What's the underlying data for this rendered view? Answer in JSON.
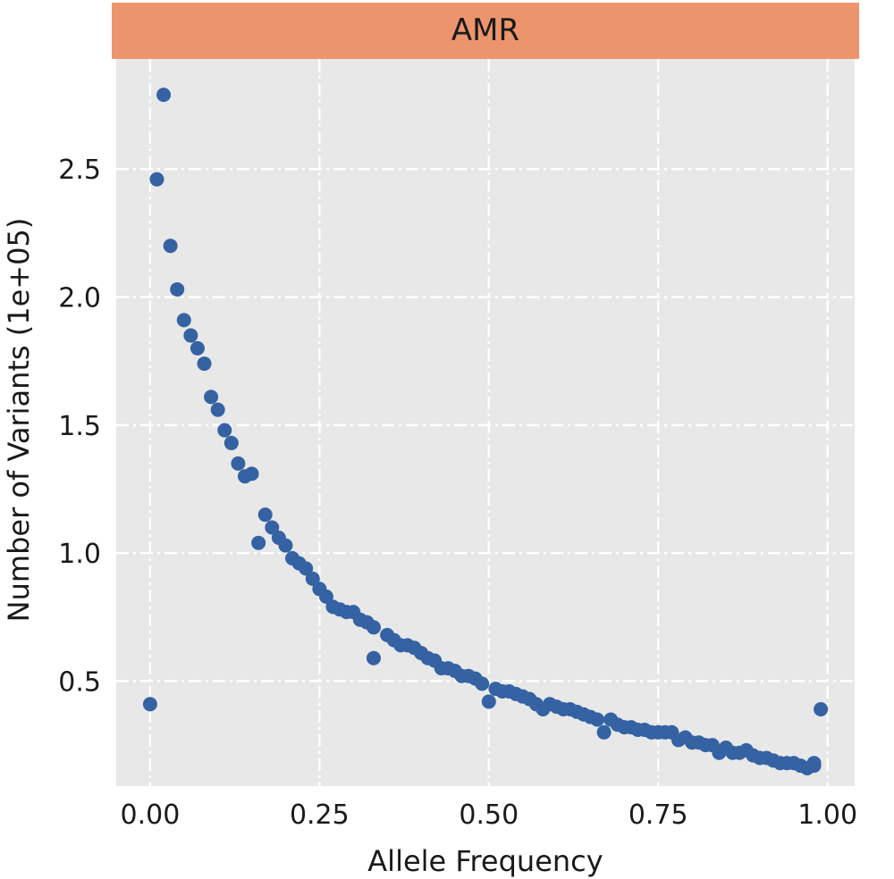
{
  "chart_data": {
    "type": "scatter",
    "title": "AMR",
    "xlabel": "Allele Frequency",
    "ylabel": "Number of Variants (1e+05)",
    "xlim": [
      -0.05,
      1.04
    ],
    "ylim": [
      0.09,
      2.93
    ],
    "xticks": [
      0.0,
      0.25,
      0.5,
      0.75,
      1.0
    ],
    "xtick_labels": [
      "0.00",
      "0.25",
      "0.50",
      "0.75",
      "1.00"
    ],
    "yticks": [
      0.5,
      1.0,
      1.5,
      2.0,
      2.5
    ],
    "ytick_labels": [
      "0.5",
      "1.0",
      "1.5",
      "2.0",
      "2.5"
    ],
    "grid": true,
    "colors": {
      "point": "#3462a3",
      "panel_background": "#e8e8e8",
      "facet_strip": "#ec956d",
      "grid": "#ffffff"
    },
    "points": [
      [
        0.0,
        0.41
      ],
      [
        0.01,
        2.46
      ],
      [
        0.02,
        2.79
      ],
      [
        0.03,
        2.2
      ],
      [
        0.04,
        2.03
      ],
      [
        0.05,
        1.91
      ],
      [
        0.06,
        1.85
      ],
      [
        0.07,
        1.8
      ],
      [
        0.08,
        1.74
      ],
      [
        0.09,
        1.61
      ],
      [
        0.1,
        1.56
      ],
      [
        0.11,
        1.48
      ],
      [
        0.12,
        1.43
      ],
      [
        0.13,
        1.35
      ],
      [
        0.14,
        1.3
      ],
      [
        0.15,
        1.31
      ],
      [
        0.16,
        1.04
      ],
      [
        0.17,
        1.15
      ],
      [
        0.18,
        1.1
      ],
      [
        0.19,
        1.06
      ],
      [
        0.2,
        1.03
      ],
      [
        0.21,
        0.98
      ],
      [
        0.22,
        0.96
      ],
      [
        0.23,
        0.94
      ],
      [
        0.24,
        0.9
      ],
      [
        0.25,
        0.86
      ],
      [
        0.26,
        0.83
      ],
      [
        0.27,
        0.79
      ],
      [
        0.28,
        0.78
      ],
      [
        0.29,
        0.77
      ],
      [
        0.3,
        0.77
      ],
      [
        0.31,
        0.74
      ],
      [
        0.32,
        0.73
      ],
      [
        0.33,
        0.71
      ],
      [
        0.33,
        0.59
      ],
      [
        0.35,
        0.68
      ],
      [
        0.36,
        0.66
      ],
      [
        0.37,
        0.64
      ],
      [
        0.38,
        0.64
      ],
      [
        0.39,
        0.63
      ],
      [
        0.4,
        0.61
      ],
      [
        0.41,
        0.59
      ],
      [
        0.42,
        0.58
      ],
      [
        0.43,
        0.55
      ],
      [
        0.44,
        0.55
      ],
      [
        0.45,
        0.54
      ],
      [
        0.46,
        0.52
      ],
      [
        0.47,
        0.52
      ],
      [
        0.48,
        0.51
      ],
      [
        0.49,
        0.49
      ],
      [
        0.5,
        0.42
      ],
      [
        0.51,
        0.47
      ],
      [
        0.52,
        0.46
      ],
      [
        0.53,
        0.46
      ],
      [
        0.54,
        0.45
      ],
      [
        0.55,
        0.44
      ],
      [
        0.56,
        0.43
      ],
      [
        0.57,
        0.41
      ],
      [
        0.58,
        0.39
      ],
      [
        0.59,
        0.41
      ],
      [
        0.6,
        0.4
      ],
      [
        0.61,
        0.39
      ],
      [
        0.62,
        0.39
      ],
      [
        0.63,
        0.38
      ],
      [
        0.64,
        0.37
      ],
      [
        0.65,
        0.36
      ],
      [
        0.66,
        0.35
      ],
      [
        0.67,
        0.3
      ],
      [
        0.68,
        0.35
      ],
      [
        0.69,
        0.33
      ],
      [
        0.7,
        0.32
      ],
      [
        0.71,
        0.32
      ],
      [
        0.72,
        0.31
      ],
      [
        0.73,
        0.31
      ],
      [
        0.74,
        0.3
      ],
      [
        0.75,
        0.3
      ],
      [
        0.76,
        0.3
      ],
      [
        0.77,
        0.3
      ],
      [
        0.78,
        0.27
      ],
      [
        0.79,
        0.28
      ],
      [
        0.8,
        0.26
      ],
      [
        0.81,
        0.26
      ],
      [
        0.82,
        0.25
      ],
      [
        0.83,
        0.25
      ],
      [
        0.84,
        0.22
      ],
      [
        0.85,
        0.24
      ],
      [
        0.86,
        0.22
      ],
      [
        0.87,
        0.22
      ],
      [
        0.88,
        0.23
      ],
      [
        0.89,
        0.21
      ],
      [
        0.9,
        0.2
      ],
      [
        0.91,
        0.2
      ],
      [
        0.92,
        0.19
      ],
      [
        0.93,
        0.18
      ],
      [
        0.94,
        0.18
      ],
      [
        0.95,
        0.18
      ],
      [
        0.96,
        0.17
      ],
      [
        0.97,
        0.16
      ],
      [
        0.98,
        0.17
      ],
      [
        0.98,
        0.18
      ],
      [
        0.99,
        0.39
      ]
    ]
  }
}
